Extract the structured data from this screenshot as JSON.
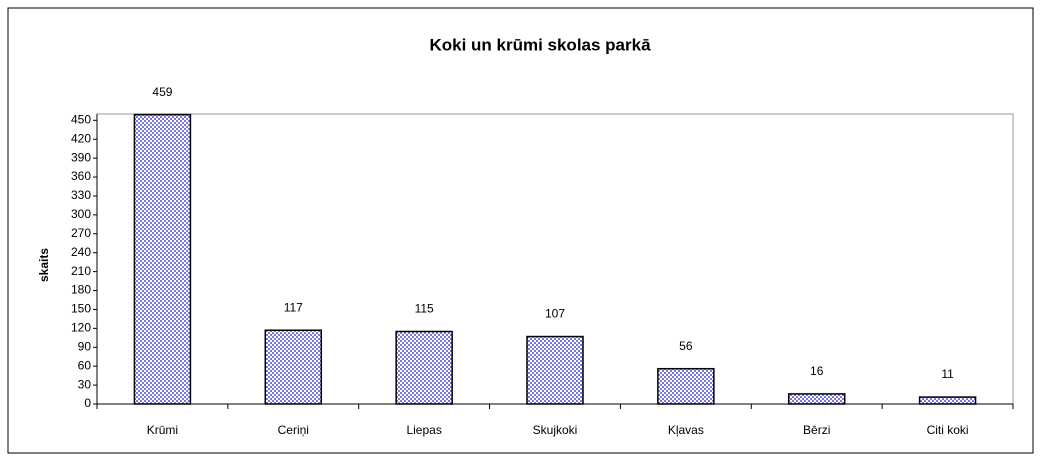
{
  "chart_data": {
    "type": "bar",
    "title": "Koki un krūmi skolas parkā",
    "y_label": "skaits",
    "categories": [
      "Krūmi",
      "Ceriņi",
      "Liepas",
      "Skujkoki",
      "Kļavas",
      "Bērzi",
      "Citi koki"
    ],
    "values": [
      459,
      117,
      115,
      107,
      56,
      16,
      11
    ],
    "color": "#7777dd",
    "ylim": [
      0,
      460
    ],
    "yticks": [
      0,
      30,
      60,
      90,
      120,
      150,
      180,
      210,
      240,
      270,
      300,
      330,
      360,
      390,
      420,
      450
    ],
    "grid": false
  }
}
